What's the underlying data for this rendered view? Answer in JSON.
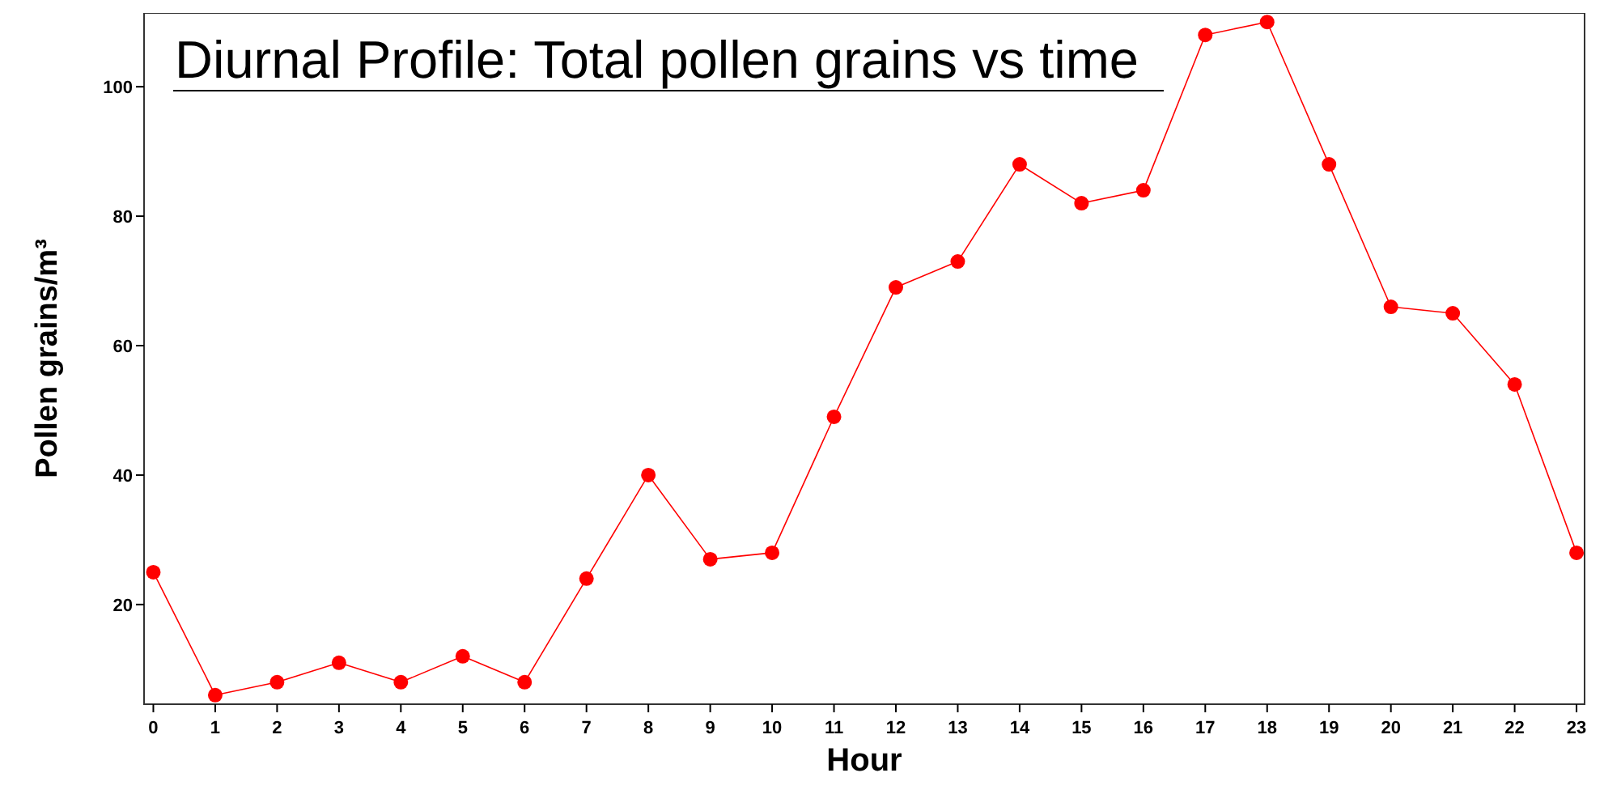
{
  "chart_data": {
    "type": "line",
    "title": "Diurnal Profile: Total pollen grains vs time",
    "xlabel": "Hour",
    "ylabel": "Pollen grains/m³",
    "x": [
      0,
      1,
      2,
      3,
      4,
      5,
      6,
      7,
      8,
      9,
      10,
      11,
      12,
      13,
      14,
      15,
      16,
      17,
      18,
      19,
      20,
      21,
      22,
      23
    ],
    "series": [
      {
        "color": "#ff0000",
        "values": [
          25,
          6,
          8,
          11,
          8,
          12,
          8,
          24,
          40,
          27,
          28,
          49,
          69,
          73,
          88,
          82,
          84,
          108,
          110,
          88,
          66,
          65,
          54,
          28
        ]
      }
    ],
    "xlim": [
      -0.15,
      23.13
    ],
    "xticks": [
      0,
      1,
      2,
      3,
      4,
      5,
      6,
      7,
      8,
      9,
      10,
      11,
      12,
      13,
      14,
      15,
      16,
      17,
      18,
      19,
      20,
      21,
      22,
      23
    ],
    "ylim": [
      4.6,
      111.4
    ],
    "yticks": [
      20,
      40,
      60,
      80,
      100
    ],
    "grid": false,
    "marker": "circle",
    "line_style": "solid"
  }
}
